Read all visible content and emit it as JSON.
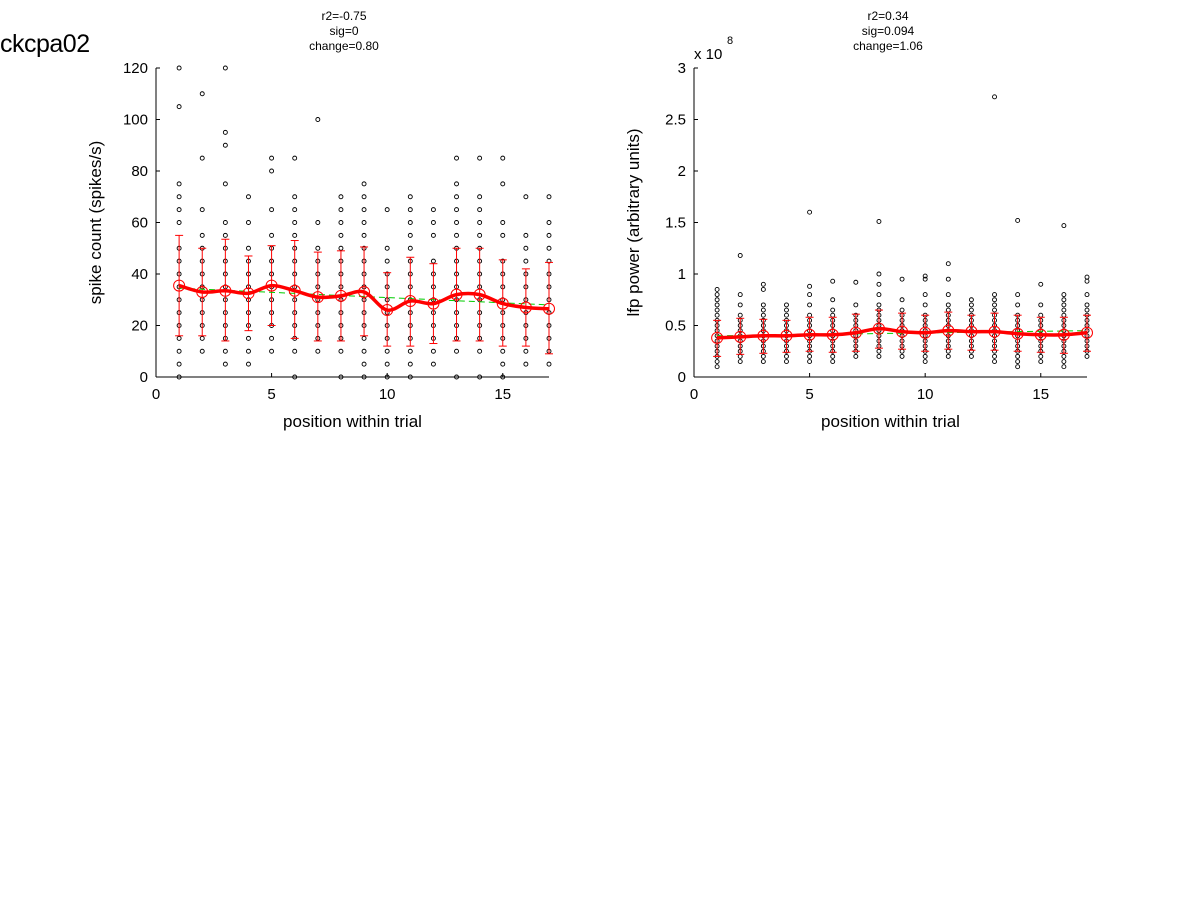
{
  "figure_title": "ckcpa02",
  "chart_data": [
    {
      "type": "scatter",
      "stats": [
        "r2=-0.75",
        "sig=0",
        "change=0.80"
      ],
      "xlabel": "position within trial",
      "ylabel": "spike count (spikes/s)",
      "xlim": [
        0,
        17
      ],
      "ylim": [
        0,
        120
      ],
      "xticks": [
        0,
        5,
        10,
        15
      ],
      "yticks": [
        0,
        20,
        40,
        60,
        80,
        100,
        120
      ],
      "xtick_labels": [
        "0",
        "5",
        "10",
        "15"
      ],
      "ytick_labels": [
        "0",
        "20",
        "40",
        "60",
        "80",
        "100",
        "120"
      ],
      "exponent_label": "",
      "grid": false,
      "marker_color": "#000000",
      "mean_color": "#ff0000",
      "fit_color": "#00cc00",
      "positions": [
        1,
        2,
        3,
        4,
        5,
        6,
        7,
        8,
        9,
        10,
        11,
        12,
        13,
        14,
        15,
        16,
        17
      ],
      "mean": [
        35.5,
        33,
        33.5,
        32.5,
        35.5,
        33.5,
        31,
        31.5,
        33,
        26,
        29.5,
        28.5,
        32,
        32,
        28.5,
        27,
        26.5
      ],
      "sd_upper": [
        55,
        50,
        53.5,
        47,
        51,
        53,
        48.5,
        49,
        50.5,
        40.5,
        46.5,
        44,
        50,
        50,
        45.5,
        42,
        44.5
      ],
      "sd_lower": [
        16,
        16,
        14,
        18,
        20,
        15,
        14,
        14,
        16,
        12,
        12,
        13,
        14,
        14,
        12,
        12,
        9
      ],
      "fit_line": {
        "x": [
          1,
          17
        ],
        "y": [
          34.5,
          28
        ]
      },
      "points": [
        [
          1,
          [
            0,
            5,
            10,
            15,
            20,
            25,
            30,
            35,
            40,
            45,
            50,
            60,
            65,
            70,
            75,
            105,
            120
          ]
        ],
        [
          2,
          [
            10,
            15,
            20,
            25,
            30,
            35,
            40,
            45,
            50,
            55,
            65,
            85,
            110
          ]
        ],
        [
          3,
          [
            5,
            10,
            15,
            20,
            25,
            30,
            35,
            40,
            45,
            50,
            55,
            60,
            75,
            90,
            95,
            120
          ]
        ],
        [
          4,
          [
            5,
            10,
            15,
            20,
            25,
            30,
            35,
            40,
            45,
            50,
            60,
            70
          ]
        ],
        [
          5,
          [
            10,
            15,
            20,
            25,
            30,
            35,
            40,
            45,
            50,
            55,
            65,
            80,
            85
          ]
        ],
        [
          6,
          [
            0,
            10,
            15,
            20,
            25,
            30,
            35,
            40,
            45,
            50,
            55,
            60,
            65,
            70,
            85
          ]
        ],
        [
          7,
          [
            10,
            15,
            20,
            25,
            30,
            35,
            40,
            45,
            50,
            60,
            100
          ]
        ],
        [
          8,
          [
            0,
            10,
            15,
            20,
            25,
            30,
            35,
            40,
            45,
            50,
            55,
            60,
            65,
            70
          ]
        ],
        [
          9,
          [
            0,
            5,
            10,
            15,
            20,
            25,
            30,
            35,
            40,
            45,
            50,
            55,
            60,
            65,
            70,
            75
          ]
        ],
        [
          10,
          [
            0,
            5,
            10,
            15,
            20,
            25,
            30,
            35,
            40,
            45,
            50,
            65
          ]
        ],
        [
          11,
          [
            0,
            5,
            10,
            15,
            20,
            25,
            30,
            35,
            40,
            45,
            50,
            55,
            60,
            65,
            70
          ]
        ],
        [
          12,
          [
            5,
            10,
            15,
            20,
            25,
            30,
            35,
            40,
            45,
            55,
            60,
            65
          ]
        ],
        [
          13,
          [
            0,
            10,
            15,
            20,
            25,
            30,
            35,
            40,
            45,
            50,
            55,
            60,
            65,
            70,
            75,
            85
          ]
        ],
        [
          14,
          [
            0,
            10,
            15,
            20,
            25,
            30,
            35,
            40,
            45,
            50,
            55,
            60,
            65,
            70,
            85
          ]
        ],
        [
          15,
          [
            0,
            5,
            10,
            15,
            20,
            25,
            30,
            35,
            40,
            45,
            55,
            60,
            75,
            85
          ]
        ],
        [
          16,
          [
            5,
            10,
            15,
            20,
            25,
            30,
            35,
            40,
            45,
            50,
            55,
            70
          ]
        ],
        [
          17,
          [
            5,
            10,
            15,
            20,
            25,
            30,
            35,
            40,
            45,
            50,
            55,
            60,
            70
          ]
        ]
      ]
    },
    {
      "type": "scatter",
      "stats": [
        "r2=0.34",
        "sig=0.094",
        "change=1.06"
      ],
      "xlabel": "position within trial",
      "ylabel": "lfp power (arbitrary units)",
      "xlim": [
        0,
        17
      ],
      "ylim": [
        0,
        3
      ],
      "xticks": [
        0,
        5,
        10,
        15
      ],
      "yticks": [
        0,
        0.5,
        1,
        1.5,
        2,
        2.5,
        3
      ],
      "xtick_labels": [
        "0",
        "5",
        "10",
        "15"
      ],
      "ytick_labels": [
        "0",
        "0.5",
        "1",
        "1.5",
        "2",
        "2.5",
        "3"
      ],
      "exponent_label": "x 10",
      "exponent_power": "8",
      "grid": false,
      "marker_color": "#000000",
      "mean_color": "#ff0000",
      "fit_color": "#00cc00",
      "positions": [
        1,
        2,
        3,
        4,
        5,
        6,
        7,
        8,
        9,
        10,
        11,
        12,
        13,
        14,
        15,
        16,
        17
      ],
      "mean": [
        0.38,
        0.39,
        0.4,
        0.4,
        0.41,
        0.41,
        0.43,
        0.47,
        0.44,
        0.43,
        0.45,
        0.44,
        0.44,
        0.42,
        0.41,
        0.41,
        0.43
      ],
      "sd_upper": [
        0.55,
        0.57,
        0.56,
        0.55,
        0.58,
        0.58,
        0.61,
        0.65,
        0.62,
        0.6,
        0.63,
        0.6,
        0.62,
        0.6,
        0.58,
        0.58,
        0.6
      ],
      "sd_lower": [
        0.2,
        0.22,
        0.23,
        0.24,
        0.25,
        0.24,
        0.25,
        0.28,
        0.27,
        0.25,
        0.27,
        0.26,
        0.26,
        0.25,
        0.24,
        0.23,
        0.25
      ],
      "fit_line": {
        "x": [
          1,
          17
        ],
        "y": [
          0.4,
          0.45
        ]
      },
      "points": [
        [
          1,
          [
            0.1,
            0.15,
            0.2,
            0.25,
            0.3,
            0.35,
            0.4,
            0.45,
            0.5,
            0.55,
            0.6,
            0.65,
            0.7,
            0.75,
            0.8,
            0.85
          ]
        ],
        [
          2,
          [
            0.15,
            0.2,
            0.25,
            0.3,
            0.35,
            0.4,
            0.45,
            0.5,
            0.55,
            0.6,
            0.7,
            0.8,
            1.18
          ]
        ],
        [
          3,
          [
            0.15,
            0.2,
            0.25,
            0.3,
            0.35,
            0.4,
            0.45,
            0.5,
            0.55,
            0.6,
            0.65,
            0.7,
            0.85,
            0.9
          ]
        ],
        [
          4,
          [
            0.15,
            0.2,
            0.25,
            0.3,
            0.35,
            0.4,
            0.45,
            0.5,
            0.55,
            0.6,
            0.65,
            0.7
          ]
        ],
        [
          5,
          [
            0.15,
            0.2,
            0.25,
            0.3,
            0.35,
            0.4,
            0.45,
            0.5,
            0.55,
            0.6,
            0.7,
            0.8,
            0.88,
            1.6
          ]
        ],
        [
          6,
          [
            0.15,
            0.2,
            0.25,
            0.3,
            0.35,
            0.4,
            0.45,
            0.5,
            0.55,
            0.6,
            0.65,
            0.75,
            0.93
          ]
        ],
        [
          7,
          [
            0.2,
            0.25,
            0.3,
            0.35,
            0.4,
            0.45,
            0.5,
            0.55,
            0.6,
            0.7,
            0.92
          ]
        ],
        [
          8,
          [
            0.2,
            0.25,
            0.3,
            0.35,
            0.4,
            0.45,
            0.5,
            0.55,
            0.6,
            0.65,
            0.7,
            0.8,
            0.9,
            1.0,
            1.51
          ]
        ],
        [
          9,
          [
            0.2,
            0.25,
            0.3,
            0.35,
            0.4,
            0.45,
            0.5,
            0.55,
            0.6,
            0.65,
            0.75,
            0.95
          ]
        ],
        [
          10,
          [
            0.15,
            0.2,
            0.25,
            0.3,
            0.35,
            0.4,
            0.45,
            0.5,
            0.55,
            0.6,
            0.7,
            0.8,
            0.95,
            0.98
          ]
        ],
        [
          11,
          [
            0.2,
            0.25,
            0.3,
            0.35,
            0.4,
            0.45,
            0.5,
            0.55,
            0.6,
            0.65,
            0.7,
            0.8,
            0.95,
            1.1
          ]
        ],
        [
          12,
          [
            0.2,
            0.25,
            0.3,
            0.35,
            0.4,
            0.45,
            0.5,
            0.55,
            0.6,
            0.65,
            0.7,
            0.75
          ]
        ],
        [
          13,
          [
            0.15,
            0.2,
            0.25,
            0.3,
            0.35,
            0.4,
            0.45,
            0.5,
            0.55,
            0.6,
            0.65,
            0.7,
            0.75,
            0.8,
            2.72
          ]
        ],
        [
          14,
          [
            0.1,
            0.15,
            0.2,
            0.25,
            0.3,
            0.35,
            0.4,
            0.45,
            0.5,
            0.55,
            0.6,
            0.7,
            0.8,
            1.52
          ]
        ],
        [
          15,
          [
            0.15,
            0.2,
            0.25,
            0.3,
            0.35,
            0.4,
            0.45,
            0.5,
            0.55,
            0.6,
            0.7,
            0.9
          ]
        ],
        [
          16,
          [
            0.1,
            0.15,
            0.2,
            0.25,
            0.3,
            0.35,
            0.4,
            0.45,
            0.5,
            0.55,
            0.6,
            0.65,
            0.7,
            0.75,
            0.8,
            1.47
          ]
        ],
        [
          17,
          [
            0.2,
            0.25,
            0.3,
            0.35,
            0.4,
            0.45,
            0.5,
            0.55,
            0.6,
            0.65,
            0.7,
            0.8,
            0.93,
            0.97
          ]
        ]
      ]
    }
  ]
}
